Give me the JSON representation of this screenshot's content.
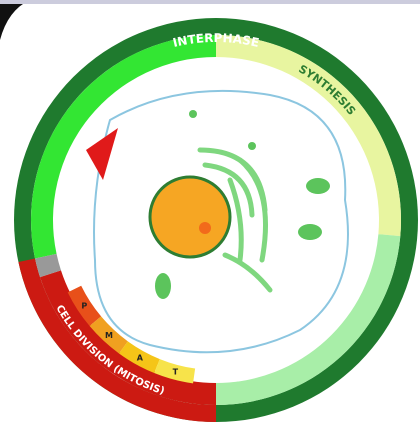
{
  "labels": {
    "top": "INTERPHASE",
    "right": "SYNTHESIS",
    "bottom": "CELL DIVISION (MITOSIS)"
  },
  "phases": [
    "P",
    "M",
    "A",
    "T"
  ]
}
